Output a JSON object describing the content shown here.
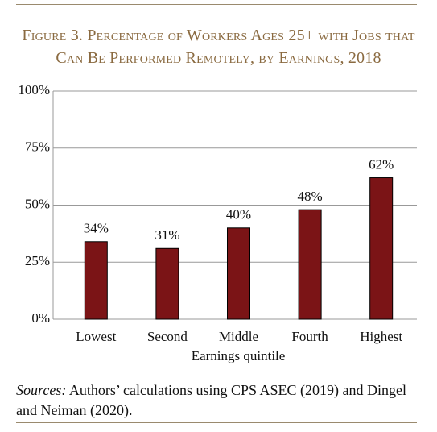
{
  "chart_data": {
    "type": "bar",
    "title": "Figure 3. Percentage of Workers Ages 25+ with Jobs that Can Be Performed Remotely, by Earnings, 2018",
    "x_label": "Earnings quintile",
    "categories": [
      "Lowest",
      "Second",
      "Middle",
      "Fourth",
      "Highest"
    ],
    "values": [
      34,
      31,
      40,
      48,
      62
    ],
    "value_labels": [
      "34%",
      "31%",
      "40%",
      "48%",
      "62%"
    ],
    "color": "#7b1416",
    "ylim": [
      0,
      100
    ],
    "yticks": [
      {
        "value": 0,
        "label": "0%"
      },
      {
        "value": 25,
        "label": "25%"
      },
      {
        "value": 50,
        "label": "50%"
      },
      {
        "value": 75,
        "label": "75%"
      },
      {
        "value": 100,
        "label": "100%"
      }
    ],
    "grid": true,
    "source_label": "Sources:",
    "source_text": "Authors’ calculations using CPS ASEC (2019) and Dingel and Neiman (2020)."
  }
}
